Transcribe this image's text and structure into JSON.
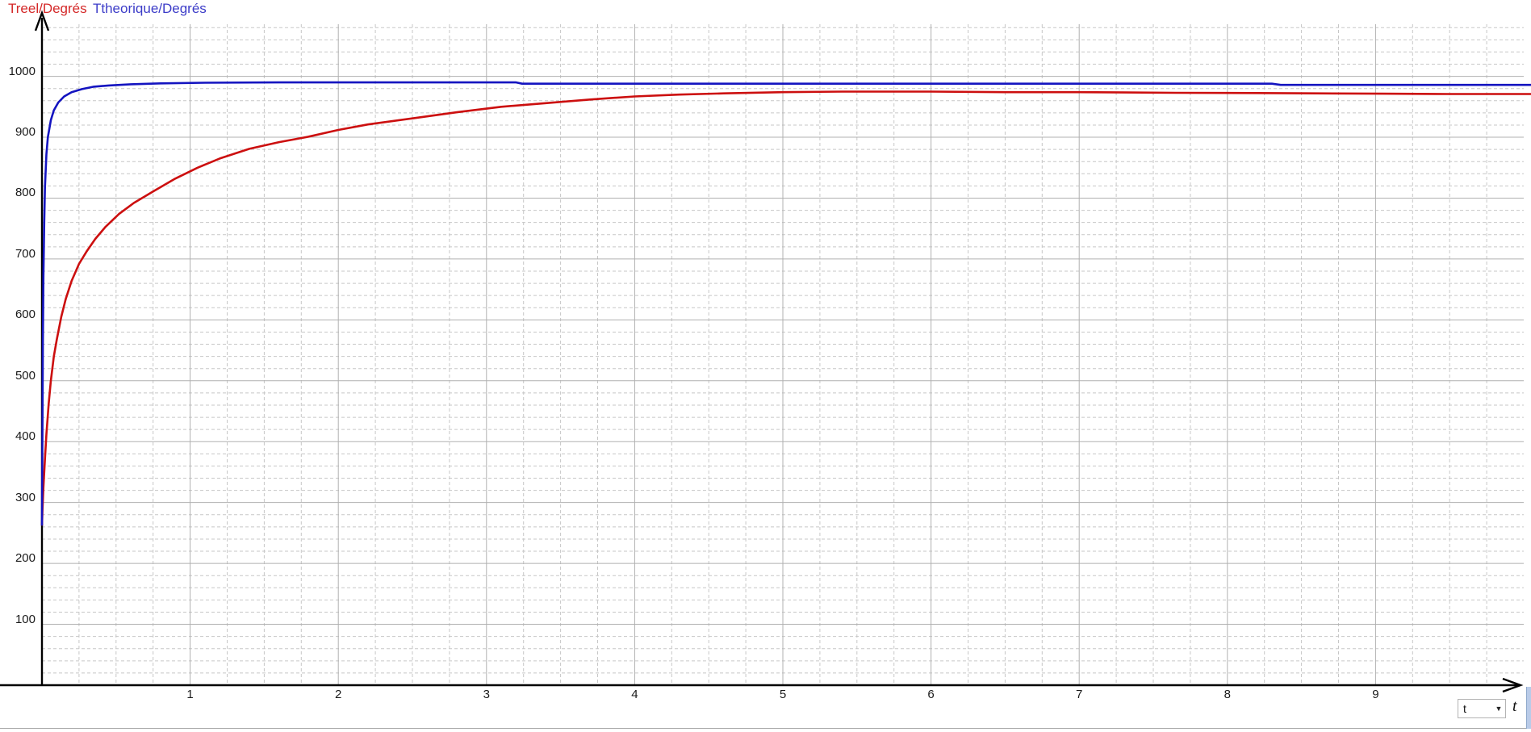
{
  "header": {
    "series_labels": [
      {
        "id": "treel",
        "text": "Treel/Degrés",
        "color": "#d42828"
      },
      {
        "id": "ttheorique",
        "text": "Ttheorique/Degrés",
        "color": "#3c3cc8"
      }
    ]
  },
  "footer": {
    "x_var_selector": {
      "value": "t"
    },
    "x_axis_label": "t"
  },
  "colors": {
    "curve_red": "#cc0f0f",
    "curve_blue": "#1414c0",
    "grid_major": "#b0b0b0",
    "grid_minor": "#c7c7c7",
    "axis": "#000000"
  },
  "chart_data": {
    "type": "line",
    "title": "",
    "xlabel": "t",
    "ylabel": "",
    "xlim": [
      0,
      10.05
    ],
    "ylim": [
      0,
      1086
    ],
    "x_ticks": [
      1,
      2,
      3,
      4,
      5,
      6,
      7,
      8,
      9
    ],
    "y_ticks": [
      100,
      200,
      300,
      400,
      500,
      600,
      700,
      800,
      900,
      1000
    ],
    "grid": {
      "major": true,
      "minor": true,
      "minor_style": "dashed",
      "x_minor_step": 0.25,
      "y_minor_step": 20
    },
    "legend_position": "top-left",
    "series": [
      {
        "name": "Treel/Degrés",
        "color": "#cc0f0f",
        "points": [
          [
            0.0,
            262
          ],
          [
            0.004,
            290
          ],
          [
            0.01,
            325
          ],
          [
            0.02,
            372
          ],
          [
            0.03,
            412
          ],
          [
            0.045,
            462
          ],
          [
            0.06,
            500
          ],
          [
            0.08,
            540
          ],
          [
            0.1,
            568
          ],
          [
            0.13,
            605
          ],
          [
            0.16,
            634
          ],
          [
            0.2,
            664
          ],
          [
            0.25,
            692
          ],
          [
            0.3,
            712
          ],
          [
            0.36,
            733
          ],
          [
            0.43,
            753
          ],
          [
            0.52,
            774
          ],
          [
            0.62,
            792
          ],
          [
            0.75,
            811
          ],
          [
            0.9,
            832
          ],
          [
            1.05,
            850
          ],
          [
            1.2,
            865
          ],
          [
            1.4,
            881
          ],
          [
            1.6,
            892
          ],
          [
            1.8,
            901
          ],
          [
            2.0,
            912
          ],
          [
            2.2,
            921
          ],
          [
            2.5,
            931
          ],
          [
            2.8,
            941
          ],
          [
            3.1,
            950
          ],
          [
            3.4,
            956
          ],
          [
            3.7,
            962
          ],
          [
            4.0,
            967
          ],
          [
            4.3,
            970
          ],
          [
            4.6,
            972
          ],
          [
            5.0,
            974
          ],
          [
            5.4,
            975
          ],
          [
            6.0,
            975
          ],
          [
            6.5,
            974
          ],
          [
            7.0,
            974
          ],
          [
            7.65,
            973
          ],
          [
            8.2,
            972.5
          ],
          [
            8.6,
            972
          ],
          [
            9.05,
            971.5
          ],
          [
            9.5,
            971
          ],
          [
            10.05,
            971
          ]
        ]
      },
      {
        "name": "Ttheorique/Degrés",
        "color": "#1414c0",
        "points": [
          [
            0.0,
            262
          ],
          [
            0.003,
            420
          ],
          [
            0.006,
            560
          ],
          [
            0.01,
            672
          ],
          [
            0.015,
            760
          ],
          [
            0.02,
            818
          ],
          [
            0.03,
            872
          ],
          [
            0.04,
            900
          ],
          [
            0.06,
            928
          ],
          [
            0.08,
            944
          ],
          [
            0.11,
            957
          ],
          [
            0.15,
            967
          ],
          [
            0.2,
            974
          ],
          [
            0.27,
            979
          ],
          [
            0.35,
            983
          ],
          [
            0.45,
            985
          ],
          [
            0.6,
            987
          ],
          [
            0.8,
            988.5
          ],
          [
            1.1,
            989.5
          ],
          [
            1.6,
            990
          ],
          [
            2.2,
            990
          ],
          [
            3.0,
            990
          ],
          [
            3.2,
            990
          ],
          [
            3.24,
            988
          ],
          [
            4.0,
            988
          ],
          [
            5.0,
            988
          ],
          [
            6.0,
            988
          ],
          [
            7.0,
            988
          ],
          [
            8.3,
            988
          ],
          [
            8.36,
            986
          ],
          [
            9.0,
            986
          ],
          [
            10.05,
            986
          ]
        ]
      }
    ]
  }
}
